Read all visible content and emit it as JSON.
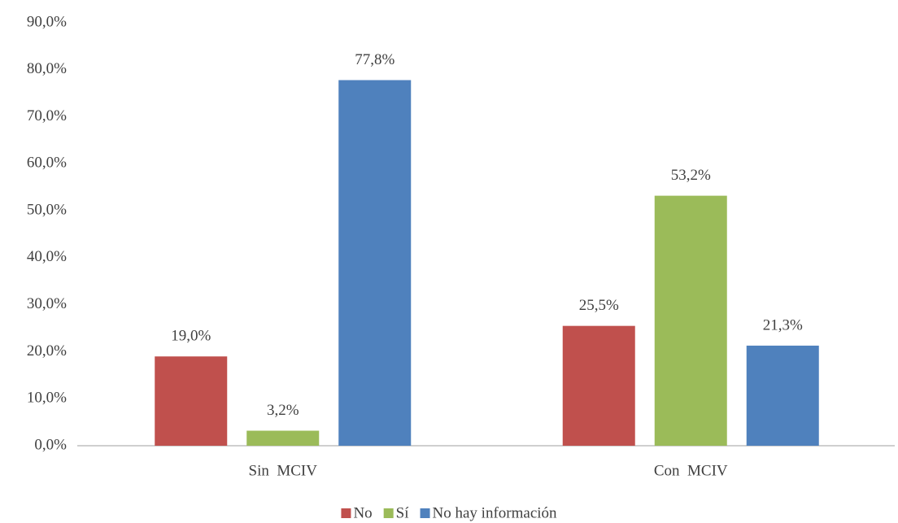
{
  "chart_data": {
    "type": "bar",
    "categories": [
      "Sin  MCIV",
      "Con  MCIV"
    ],
    "series": [
      {
        "name": "No",
        "color": "#c0504d",
        "values": [
          19.0,
          25.5
        ],
        "value_labels": [
          "19,0%",
          "25,5%"
        ]
      },
      {
        "name": "Sí",
        "color": "#9bbb59",
        "values": [
          3.2,
          53.2
        ],
        "value_labels": [
          "3,2%",
          "53,2%"
        ]
      },
      {
        "name": "No hay información",
        "color": "#4f81bd",
        "values": [
          77.8,
          21.3
        ],
        "value_labels": [
          "77,8%",
          "21,3%"
        ]
      }
    ],
    "ylim": [
      0,
      90
    ],
    "yticks": [
      {
        "value": 0,
        "label": "0,0%"
      },
      {
        "value": 10,
        "label": "10,0%"
      },
      {
        "value": 20,
        "label": "20,0%"
      },
      {
        "value": 30,
        "label": "30,0%"
      },
      {
        "value": 40,
        "label": "40,0%"
      },
      {
        "value": 50,
        "label": "50,0%"
      },
      {
        "value": 60,
        "label": "60,0%"
      },
      {
        "value": 70,
        "label": "70,0%"
      },
      {
        "value": 80,
        "label": "80,0%"
      },
      {
        "value": 90,
        "label": "90,0%"
      }
    ],
    "grid": false,
    "legend": "bottom"
  }
}
